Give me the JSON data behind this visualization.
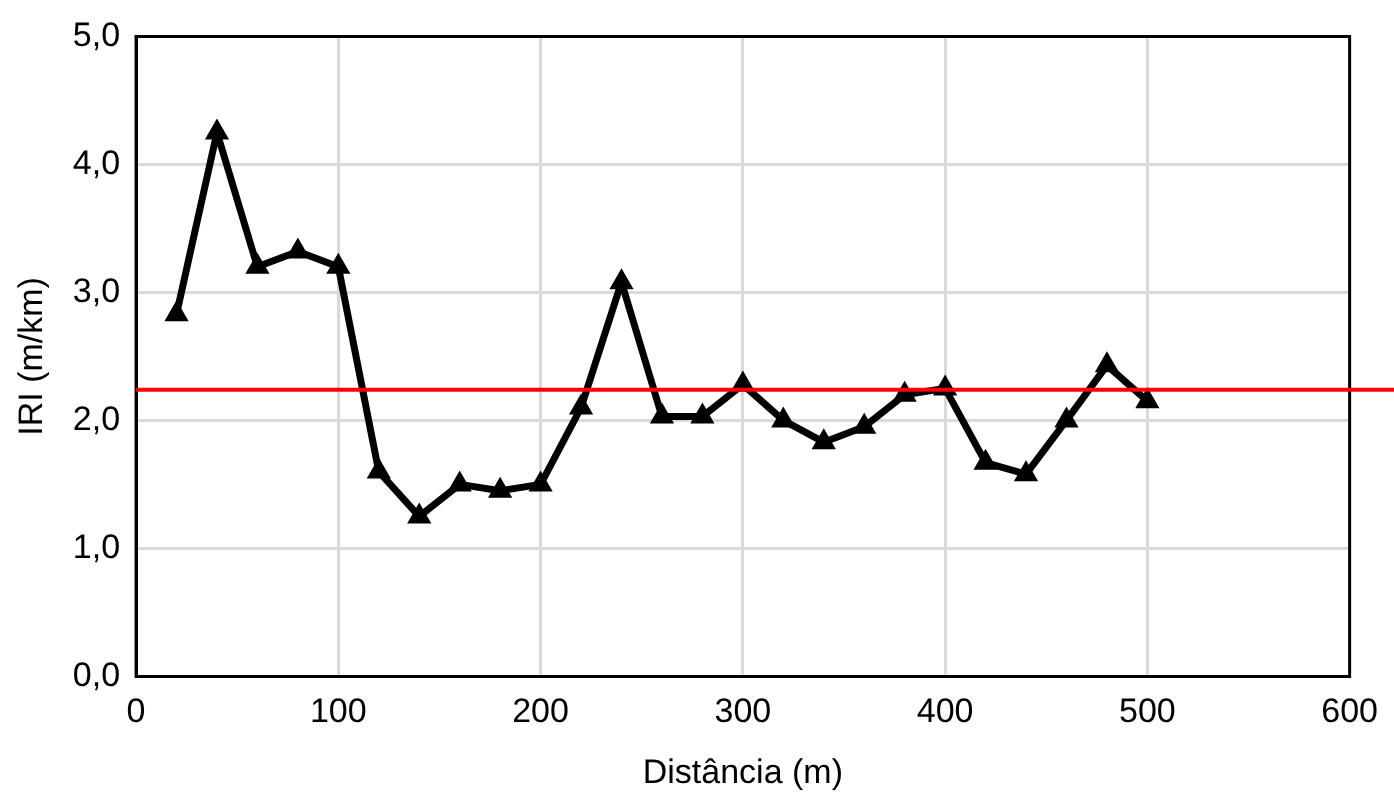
{
  "chart_data": {
    "type": "line",
    "xlabel": "Distância (m)",
    "ylabel": "IRI (m/km)",
    "x": [
      20,
      40,
      60,
      80,
      100,
      120,
      140,
      160,
      180,
      200,
      220,
      240,
      260,
      280,
      300,
      320,
      340,
      360,
      380,
      400,
      420,
      440,
      460,
      480,
      500
    ],
    "series": [
      {
        "color": "#000000",
        "values": [
          2.83,
          4.25,
          3.2,
          3.32,
          3.2,
          1.6,
          1.25,
          1.5,
          1.45,
          1.5,
          2.1,
          3.08,
          2.03,
          2.03,
          2.28,
          2.0,
          1.83,
          1.95,
          2.2,
          2.25,
          1.67,
          1.58,
          2.0,
          2.43,
          2.15
        ]
      }
    ],
    "xlim": [
      0,
      600
    ],
    "xticks": [
      0,
      100,
      200,
      300,
      400,
      500,
      600
    ],
    "ylim": [
      0,
      5
    ],
    "yticks": [
      {
        "value": 0,
        "label": "0,0"
      },
      {
        "value": 1,
        "label": "1,0"
      },
      {
        "value": 2,
        "label": "2,0"
      },
      {
        "value": 3,
        "label": "3,0"
      },
      {
        "value": 4,
        "label": "4,0"
      },
      {
        "value": 5,
        "label": "5,0"
      }
    ],
    "ref_lines": [
      {
        "axis": "y",
        "value": 2.24,
        "color": "#ff0000"
      }
    ],
    "grid": true,
    "marker": "triangle",
    "line_style": "solid",
    "legend": false
  }
}
